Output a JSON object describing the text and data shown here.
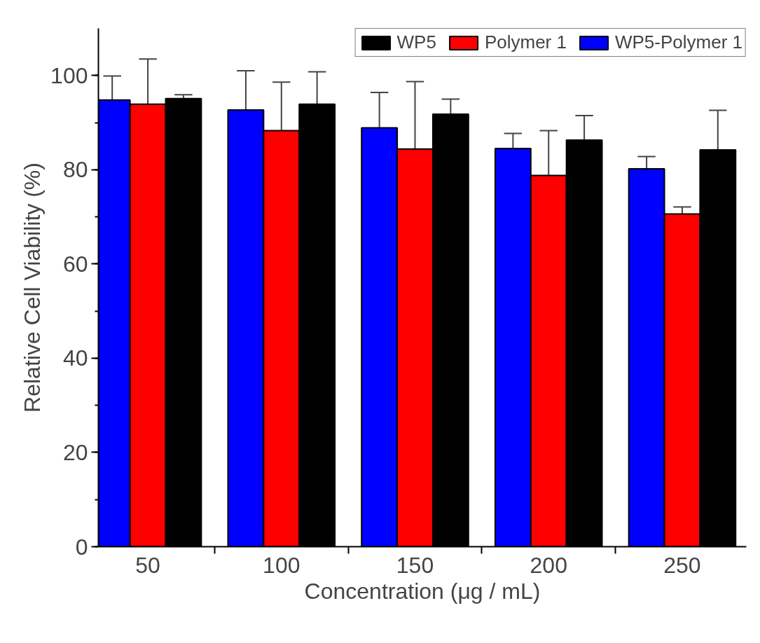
{
  "chart_data": {
    "type": "bar",
    "xlabel": "Concentration (μg / mL)",
    "ylabel": "Relative Cell Viability (%)",
    "categories": [
      "50",
      "100",
      "150",
      "200",
      "250"
    ],
    "series": [
      {
        "name": "WP5-Polymer 1",
        "color": "#0000ff",
        "values": [
          94.8,
          92.7,
          88.9,
          84.5,
          80.2
        ],
        "errors": [
          5.1,
          8.3,
          7.5,
          3.2,
          2.6
        ]
      },
      {
        "name": "Polymer 1",
        "color": "#ff0000",
        "values": [
          93.9,
          88.3,
          84.4,
          78.8,
          70.6
        ],
        "errors": [
          9.6,
          10.3,
          14.3,
          9.5,
          1.5
        ]
      },
      {
        "name": "WP5",
        "color": "#000000",
        "values": [
          95.1,
          93.9,
          91.8,
          86.3,
          84.2
        ],
        "errors": [
          0.8,
          6.9,
          3.2,
          5.2,
          8.4
        ]
      }
    ],
    "ylim": [
      0,
      110
    ],
    "yticks": [
      0,
      20,
      40,
      60,
      80,
      100
    ],
    "grid": false,
    "legend": "top right"
  }
}
